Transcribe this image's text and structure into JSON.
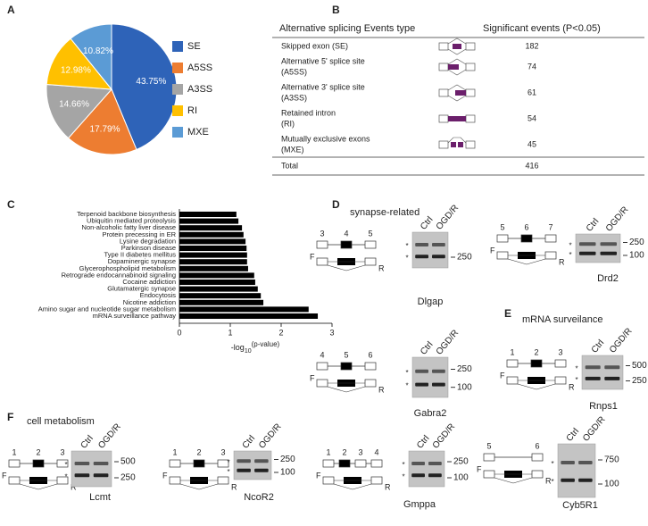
{
  "panels": [
    "A",
    "B",
    "C",
    "D",
    "E",
    "F"
  ],
  "chart_data": [
    {
      "type": "pie",
      "categories": [
        "SE",
        "A5SS",
        "A3SS",
        "RI",
        "MXE"
      ],
      "values": [
        43.75,
        17.79,
        14.66,
        12.98,
        10.82
      ],
      "value_labels": [
        "43.75%",
        "17.79%",
        "14.66%",
        "12.98%",
        "10.82%"
      ],
      "colors": [
        "#2e63b8",
        "#ed7d31",
        "#a5a5a5",
        "#ffc000",
        "#5b9bd5"
      ],
      "legend": "right"
    },
    {
      "type": "bar",
      "orientation": "horizontal",
      "categories": [
        "Terpenoid backbone biosynthesis",
        "Ubiquitin mediated proteolysis",
        "Non-alcoholic fatty liver disease",
        "Protein precessing in ER",
        "Lysine degradation",
        "Parkinson disease",
        "Type II diabetes mellitus",
        "Dopaminergic synapse",
        "Glycerophospholipid metabolism",
        "Retrograde endocannabinoid signaling",
        "Cocaine addiction",
        "Glutamatergic synapse",
        "Endocytosis",
        "Nicotine addiction",
        "Amino sugar and nucleotide sugar metabolism",
        "mRNA surveillance pathway"
      ],
      "values": [
        1.12,
        1.16,
        1.23,
        1.26,
        1.3,
        1.32,
        1.33,
        1.33,
        1.35,
        1.47,
        1.49,
        1.54,
        1.6,
        1.65,
        2.54,
        2.72
      ],
      "color": "#000000",
      "xlim": [
        0,
        3
      ],
      "xticks": [
        0,
        1,
        2,
        3
      ],
      "x_label": [
        "-log",
        "10",
        "(p-value)"
      ]
    }
  ],
  "table": {
    "header": [
      "Alternative splicing Events type",
      "Significant events (P<0.05)"
    ],
    "rows": [
      {
        "name": [
          "Skipped exon (SE)"
        ],
        "count": 182
      },
      {
        "name": [
          "Alternative 5' splice site",
          "(A5SS)"
        ],
        "count": 74
      },
      {
        "name": [
          "Alternative 3' splice site",
          "(A3SS)"
        ],
        "count": 61
      },
      {
        "name": [
          "Retained intron",
          "(RI)"
        ],
        "count": 54
      },
      {
        "name": [
          "Mutually exclusive exons",
          "(MXE)"
        ],
        "count": 45
      }
    ],
    "total": {
      "name": "Total",
      "count": 416
    }
  },
  "sections": {
    "synapse": "synapse-related",
    "mrna": "mRNA surveilance",
    "metabolism": "cell metabolism"
  },
  "gel_labels": {
    "lanes": [
      "Ctrl",
      "OGD/R"
    ],
    "primers": [
      "F",
      "R"
    ],
    "band": "*"
  },
  "gels": [
    {
      "name": "Dlgap",
      "exons": [
        3,
        4,
        5
      ],
      "markers": [
        250
      ]
    },
    {
      "name": "Drd2",
      "exons": [
        5,
        6,
        7
      ],
      "markers": [
        250,
        100
      ]
    },
    {
      "name": "Gabra2",
      "exons": [
        4,
        5,
        6
      ],
      "markers": [
        250,
        100
      ]
    },
    {
      "name": "Rnps1",
      "exons": [
        1,
        2,
        3
      ],
      "markers": [
        500,
        250
      ]
    },
    {
      "name": "Lcmt",
      "exons": [
        1,
        2,
        3
      ],
      "markers": [
        500,
        250
      ]
    },
    {
      "name": "NcoR2",
      "exons": [
        1,
        2,
        3
      ],
      "markers": [
        250,
        100
      ]
    },
    {
      "name": "Gmppa",
      "exons": [
        1,
        2,
        3,
        4
      ],
      "markers": [
        250,
        100
      ]
    },
    {
      "name": "Cyb5R1",
      "exons": [
        5,
        6
      ],
      "markers": [
        750,
        100
      ]
    }
  ]
}
